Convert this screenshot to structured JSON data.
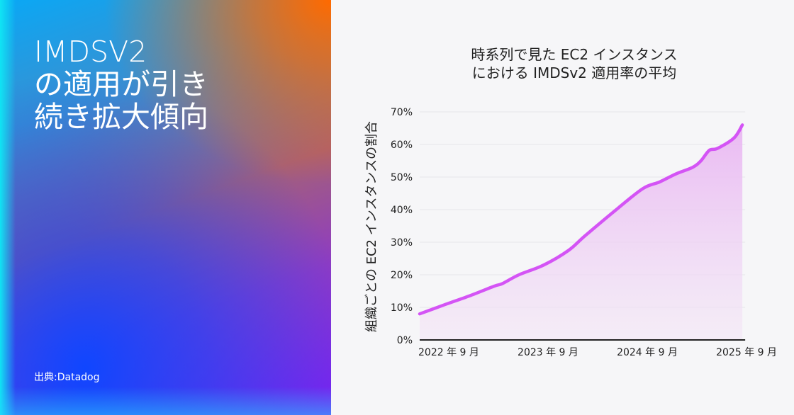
{
  "headline": "IMDSV2\nの適用が引き\n続き拡大傾向",
  "source": "出典:Datadog",
  "colors": {
    "line": "#d454f5",
    "area": "#e9b6f2",
    "panel_orange": "#ff6a00",
    "panel_blue": "#1046ff",
    "panel_purple": "#7a1ff5"
  },
  "chart_data": {
    "type": "area",
    "title": "時系列で見た EC2 インスタンス\nにおける IMDSv2 適用率の平均",
    "xlabel": "",
    "ylabel": "組織ごとの EC2 インスタンスの割合",
    "ylim": [
      0,
      70
    ],
    "yticks": [
      "0%",
      "10%",
      "20%",
      "30%",
      "40%",
      "50%",
      "60%",
      "70%"
    ],
    "xticks": [
      {
        "date": "2022-09",
        "label": "2022 年 9 月"
      },
      {
        "date": "2023-09",
        "label": "2023 年 9 月"
      },
      {
        "date": "2024-09",
        "label": "2024 年 9 月"
      },
      {
        "date": "2025-09",
        "label": "2025 年 9 月"
      }
    ],
    "grid": true,
    "x": [
      "2022-09",
      "2022-12",
      "2023-03",
      "2023-06",
      "2023-07",
      "2023-09",
      "2023-12",
      "2024-03",
      "2024-05",
      "2024-09",
      "2024-12",
      "2025-02",
      "2025-04",
      "2025-06",
      "2025-07",
      "2025-08",
      "2025-09",
      "2025-11",
      "2025-12"
    ],
    "values": [
      8.0,
      10.8,
      13.5,
      16.5,
      17.3,
      20.0,
      23.0,
      27.5,
      32.0,
      40.5,
      46.5,
      48.5,
      51.0,
      53.0,
      55.0,
      58.2,
      58.8,
      62.0,
      66.0
    ]
  }
}
